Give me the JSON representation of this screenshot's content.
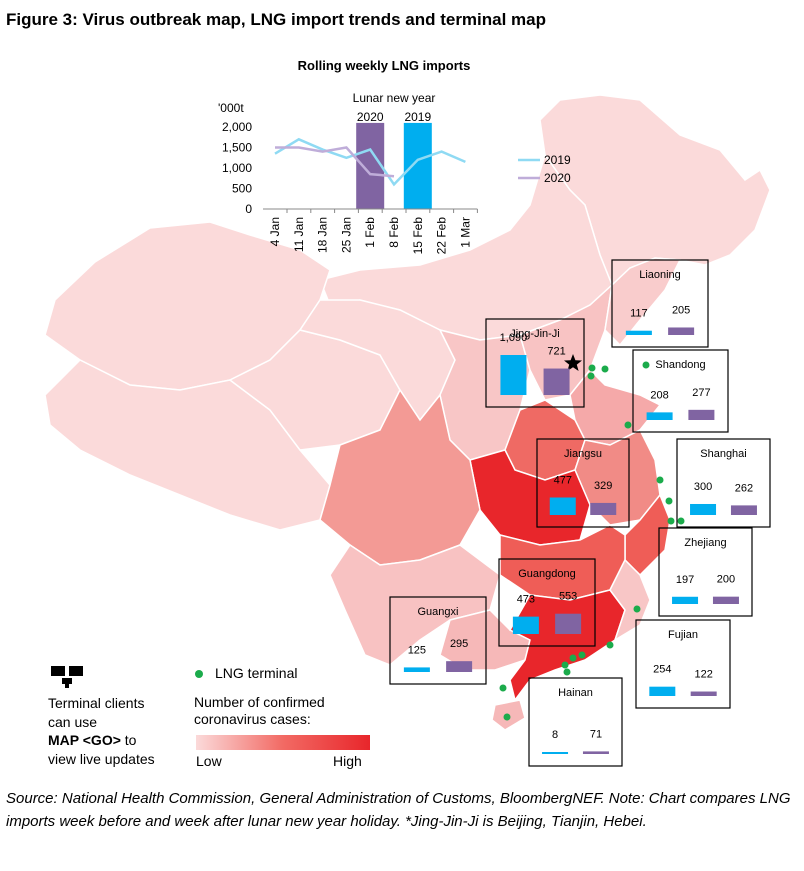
{
  "figure": {
    "title": "Figure 3:  Virus outbreak map, LNG import trends and terminal map",
    "source_note": "Source: National Health Commission, General Administration of Customs, BloombergNEF. Note: Chart compares LNG imports week before and week after lunar new year holiday. *Jing-Jin-Ji is Beijing, Tianjin, Hebei."
  },
  "colors": {
    "imports_2019": "#00aeef",
    "imports_2020": "#8064a2",
    "line_2019": "#8fdaf3",
    "line_2020": "#bfadd9",
    "lng_terminal": "#1bab4b",
    "cases_low": "#fbdada",
    "cases_high": "#e8262b"
  },
  "chart_data": {
    "type": "line",
    "title": "Rolling weekly LNG imports",
    "ylabel": "'000t",
    "ylim": [
      0,
      2000
    ],
    "yticks": [
      "0",
      "500",
      "1,000",
      "1,500",
      "2,000"
    ],
    "categories": [
      "4 Jan",
      "11 Jan",
      "18 Jan",
      "25 Jan",
      "1 Feb",
      "8 Feb",
      "15 Feb",
      "22 Feb",
      "1 Mar"
    ],
    "series": [
      {
        "name": "2019",
        "values": [
          1350,
          1700,
          1450,
          1250,
          1450,
          600,
          1200,
          1400,
          1150
        ]
      },
      {
        "name": "2020",
        "values": [
          1500,
          1500,
          1400,
          1500,
          850,
          800,
          null,
          null,
          null
        ]
      }
    ],
    "highlight_bars": [
      {
        "category": "1 Feb",
        "label": "2020",
        "value": 2100
      },
      {
        "category": "15 Feb",
        "label": "2019",
        "value": 2100
      }
    ],
    "annotation": "Lunar new year",
    "legend_position": "right"
  },
  "map": {
    "terminal_legend": "LNG terminal",
    "cases_legend_title": "Number of confirmed coronavirus cases:",
    "cases_low": "Low",
    "cases_high": "High",
    "clients_text": {
      "line1": "Terminal clients",
      "line2": "can use",
      "line3_bold": "MAP <GO>",
      "line3_rest": " to",
      "line4": "view live updates"
    },
    "regions": [
      {
        "name": "Liaoning",
        "v2019": 117,
        "v2019_label": "117",
        "v2020": 205,
        "v2020_label": "205"
      },
      {
        "name": "Jing-Jin-Ji",
        "v2019": 1090,
        "v2019_label": "1,090",
        "v2020": 721,
        "v2020_label": "721"
      },
      {
        "name": "Shandong",
        "v2019": 208,
        "v2019_label": "208",
        "v2020": 277,
        "v2020_label": "277"
      },
      {
        "name": "Shanghai",
        "v2019": 300,
        "v2019_label": "300",
        "v2020": 262,
        "v2020_label": "262"
      },
      {
        "name": "Jiangsu",
        "v2019": 477,
        "v2019_label": "477",
        "v2020": 329,
        "v2020_label": "329"
      },
      {
        "name": "Zhejiang",
        "v2019": 197,
        "v2019_label": "197",
        "v2020": 200,
        "v2020_label": "200"
      },
      {
        "name": "Guangdong",
        "v2019": 473,
        "v2019_label": "473",
        "v2020": 553,
        "v2020_label": "553"
      },
      {
        "name": "Guangxi",
        "v2019": 125,
        "v2019_label": "125",
        "v2020": 295,
        "v2020_label": "295"
      },
      {
        "name": "Fujian",
        "v2019": 254,
        "v2019_label": "254",
        "v2020": 122,
        "v2020_label": "122"
      },
      {
        "name": "Hainan",
        "v2019": 8,
        "v2019_label": "8",
        "v2020": 71,
        "v2020_label": "71"
      }
    ]
  }
}
